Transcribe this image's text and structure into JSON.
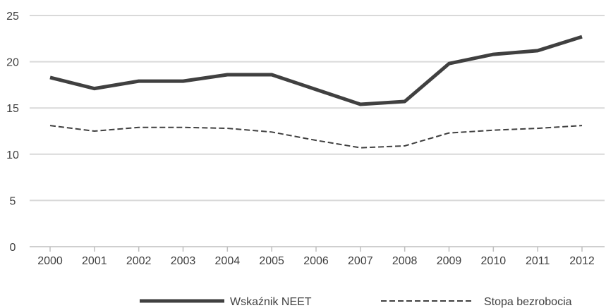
{
  "chart_data": {
    "type": "line",
    "title": "",
    "xlabel": "",
    "ylabel": "",
    "x": [
      "2000",
      "2001",
      "2002",
      "2003",
      "2004",
      "2005",
      "2006",
      "2007",
      "2008",
      "2009",
      "2010",
      "2011",
      "2012"
    ],
    "ylim": [
      0,
      25
    ],
    "yticks": [
      0,
      5,
      10,
      15,
      20,
      25
    ],
    "grid": "horizontal",
    "legend_position": "bottom",
    "series": [
      {
        "name": "Wskaźnik NEET",
        "style": "solid",
        "color": "#404040",
        "values": [
          18.3,
          17.1,
          17.9,
          17.9,
          18.6,
          18.6,
          17.0,
          15.4,
          15.7,
          19.8,
          20.8,
          21.2,
          22.7
        ]
      },
      {
        "name": "Stopa bezrobocia",
        "style": "dashed",
        "color": "#404040",
        "values": [
          13.1,
          12.5,
          12.9,
          12.9,
          12.8,
          12.4,
          11.5,
          10.7,
          10.9,
          12.3,
          12.6,
          12.8,
          13.1
        ]
      }
    ]
  }
}
